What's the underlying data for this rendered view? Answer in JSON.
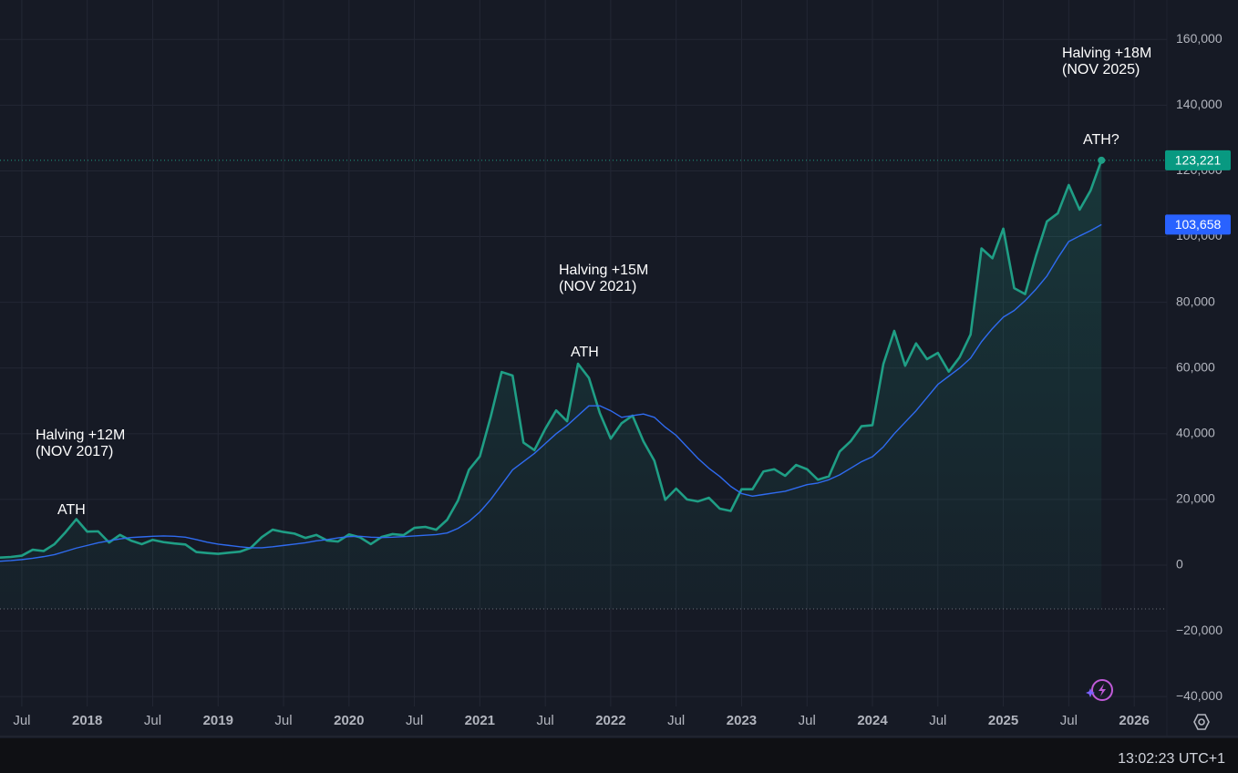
{
  "chart_data": {
    "type": "line",
    "x": [
      "2017-05",
      "2017-06",
      "2017-07",
      "2017-08",
      "2017-09",
      "2017-10",
      "2017-11",
      "2017-12",
      "2018-01",
      "2018-02",
      "2018-03",
      "2018-04",
      "2018-05",
      "2018-06",
      "2018-07",
      "2018-08",
      "2018-09",
      "2018-10",
      "2018-11",
      "2018-12",
      "2019-01",
      "2019-02",
      "2019-03",
      "2019-04",
      "2019-05",
      "2019-06",
      "2019-07",
      "2019-08",
      "2019-09",
      "2019-10",
      "2019-11",
      "2019-12",
      "2020-01",
      "2020-02",
      "2020-03",
      "2020-04",
      "2020-05",
      "2020-06",
      "2020-07",
      "2020-08",
      "2020-09",
      "2020-10",
      "2020-11",
      "2020-12",
      "2021-01",
      "2021-02",
      "2021-03",
      "2021-04",
      "2021-05",
      "2021-06",
      "2021-07",
      "2021-08",
      "2021-09",
      "2021-10",
      "2021-11",
      "2021-12",
      "2022-01",
      "2022-02",
      "2022-03",
      "2022-04",
      "2022-05",
      "2022-06",
      "2022-07",
      "2022-08",
      "2022-09",
      "2022-10",
      "2022-11",
      "2022-12",
      "2023-01",
      "2023-02",
      "2023-03",
      "2023-04",
      "2023-05",
      "2023-06",
      "2023-07",
      "2023-08",
      "2023-09",
      "2023-10",
      "2023-11",
      "2023-12",
      "2024-01",
      "2024-02",
      "2024-03",
      "2024-04",
      "2024-05",
      "2024-06",
      "2024-07",
      "2024-08",
      "2024-09",
      "2024-10",
      "2024-11",
      "2024-12",
      "2025-01",
      "2025-02",
      "2025-03",
      "2025-04",
      "2025-05",
      "2025-06",
      "2025-07",
      "2025-08",
      "2025-09",
      "2025-10"
    ],
    "series": [
      {
        "color": "#1f9e85",
        "last_value_label": "123,221",
        "values": [
          2300,
          2500,
          2900,
          4700,
          4300,
          6400,
          10000,
          14000,
          10200,
          10300,
          6900,
          9200,
          7500,
          6400,
          7700,
          7000,
          6600,
          6300,
          4000,
          3700,
          3450,
          3800,
          4100,
          5300,
          8500,
          10800,
          10100,
          9600,
          8300,
          9200,
          7500,
          7200,
          9350,
          8500,
          6400,
          8600,
          9450,
          9140,
          11350,
          11650,
          10780,
          13800,
          19700,
          29000,
          33100,
          45200,
          58800,
          57700,
          37300,
          35000,
          41500,
          47100,
          43800,
          61300,
          57000,
          46300,
          38500,
          43200,
          45500,
          37700,
          31800,
          19900,
          23300,
          20000,
          19400,
          20500,
          17200,
          16500,
          23100,
          23100,
          28500,
          29200,
          27200,
          30500,
          29200,
          26000,
          27000,
          34600,
          37700,
          42300,
          42600,
          61200,
          71300,
          60700,
          67500,
          62700,
          64600,
          58900,
          63300,
          70200,
          96400,
          93400,
          102400,
          84300,
          82500,
          94200,
          104600,
          107100,
          115700,
          108200,
          114000,
          123221
        ]
      },
      {
        "color": "#2f6bf0",
        "last_value_label": "103,658",
        "values": [
          1200,
          1400,
          1700,
          2100,
          2600,
          3200,
          4200,
          5200,
          6000,
          6800,
          7400,
          8000,
          8400,
          8600,
          8800,
          8900,
          8800,
          8500,
          7800,
          7000,
          6400,
          6000,
          5600,
          5300,
          5300,
          5600,
          6000,
          6400,
          6800,
          7400,
          7800,
          8300,
          8700,
          8800,
          8500,
          8400,
          8500,
          8700,
          8900,
          9100,
          9300,
          9800,
          11200,
          13300,
          16200,
          20000,
          24500,
          29000,
          31500,
          34000,
          37000,
          40000,
          42500,
          45500,
          48500,
          48500,
          47000,
          45000,
          45500,
          46000,
          45000,
          42000,
          39500,
          36000,
          32500,
          29500,
          27000,
          24000,
          21800,
          21000,
          21500,
          22000,
          22500,
          23500,
          24500,
          25000,
          26000,
          27500,
          29500,
          31500,
          33000,
          36000,
          40000,
          43500,
          47000,
          51000,
          55000,
          57500,
          60000,
          63000,
          68000,
          72000,
          75500,
          77500,
          80500,
          84000,
          88000,
          93500,
          98500,
          100200,
          101800,
          103658
        ]
      }
    ],
    "xlim": [
      "2017-05",
      "2026-04"
    ],
    "xticks": [
      {
        "value": "2017-07",
        "label": "Jul"
      },
      {
        "value": "2018-01",
        "label": "2018"
      },
      {
        "value": "2018-07",
        "label": "Jul"
      },
      {
        "value": "2019-01",
        "label": "2019"
      },
      {
        "value": "2019-07",
        "label": "Jul"
      },
      {
        "value": "2020-01",
        "label": "2020"
      },
      {
        "value": "2020-07",
        "label": "Jul"
      },
      {
        "value": "2021-01",
        "label": "2021"
      },
      {
        "value": "2021-07",
        "label": "Jul"
      },
      {
        "value": "2022-01",
        "label": "2022"
      },
      {
        "value": "2022-07",
        "label": "Jul"
      },
      {
        "value": "2023-01",
        "label": "2023"
      },
      {
        "value": "2023-07",
        "label": "Jul"
      },
      {
        "value": "2024-01",
        "label": "2024"
      },
      {
        "value": "2024-07",
        "label": "Jul"
      },
      {
        "value": "2025-01",
        "label": "2025"
      },
      {
        "value": "2025-07",
        "label": "Jul"
      },
      {
        "value": "2026-01",
        "label": "2026"
      }
    ],
    "ylim": [
      -43000,
      172000
    ],
    "yticks": [
      {
        "value": -40000,
        "label": "−40,000"
      },
      {
        "value": -20000,
        "label": "−20,000"
      },
      0,
      {
        "value": 20000,
        "label": "20,000"
      },
      {
        "value": 40000,
        "label": "40,000"
      },
      {
        "value": 60000,
        "label": "60,000"
      },
      {
        "value": 80000,
        "label": "80,000"
      },
      {
        "value": 100000,
        "label": "100,000"
      },
      {
        "value": 120000,
        "label": "120,000"
      },
      {
        "value": 140000,
        "label": "140,000"
      },
      {
        "value": 160000,
        "label": "160,000"
      }
    ],
    "grid": true,
    "annotations": [
      {
        "lines": [
          "Halving +12M",
          "(NOV 2017)"
        ]
      },
      {
        "lines": [
          "ATH"
        ]
      },
      {
        "lines": [
          "Halving +15M",
          "(NOV 2021)"
        ]
      },
      {
        "lines": [
          "ATH"
        ]
      },
      {
        "lines": [
          "Halving +18M",
          "(NOV 2025)"
        ]
      },
      {
        "lines": [
          "ATH?"
        ]
      }
    ]
  },
  "status_bar": {
    "clock": "13:02:23 UTC+1"
  }
}
